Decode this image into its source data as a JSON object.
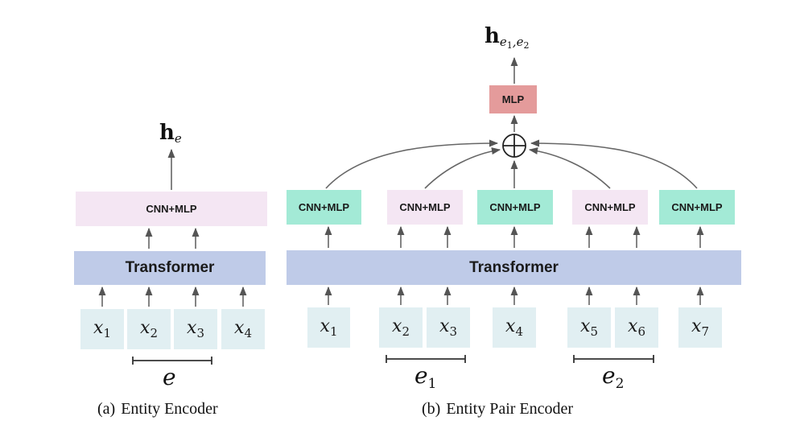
{
  "labels": {
    "cnn_mlp": "CNN+MLP",
    "transformer": "Transformer",
    "mlp": "MLP",
    "oplus": "⊕"
  },
  "left": {
    "tokens": [
      {
        "base": "x",
        "sub": "1"
      },
      {
        "base": "x",
        "sub": "2"
      },
      {
        "base": "x",
        "sub": "3"
      },
      {
        "base": "x",
        "sub": "4"
      }
    ],
    "span_label": {
      "base": "e",
      "sub": ""
    },
    "output": {
      "bold": "h",
      "sub": "e"
    },
    "caption": {
      "tag": "(a)",
      "text": "Entity Encoder"
    }
  },
  "right": {
    "tokens": [
      {
        "base": "x",
        "sub": "1"
      },
      {
        "base": "x",
        "sub": "2"
      },
      {
        "base": "x",
        "sub": "3"
      },
      {
        "base": "x",
        "sub": "4"
      },
      {
        "base": "x",
        "sub": "5"
      },
      {
        "base": "x",
        "sub": "6"
      },
      {
        "base": "x",
        "sub": "7"
      }
    ],
    "span_labels": [
      {
        "base": "e",
        "sub": "1"
      },
      {
        "base": "e",
        "sub": "2"
      }
    ],
    "output": {
      "bold": "h",
      "sub_e": "e",
      "sub1": "1",
      "sub2": "2"
    },
    "caption": {
      "tag": "(b)",
      "text": "Entity Pair Encoder"
    }
  }
}
